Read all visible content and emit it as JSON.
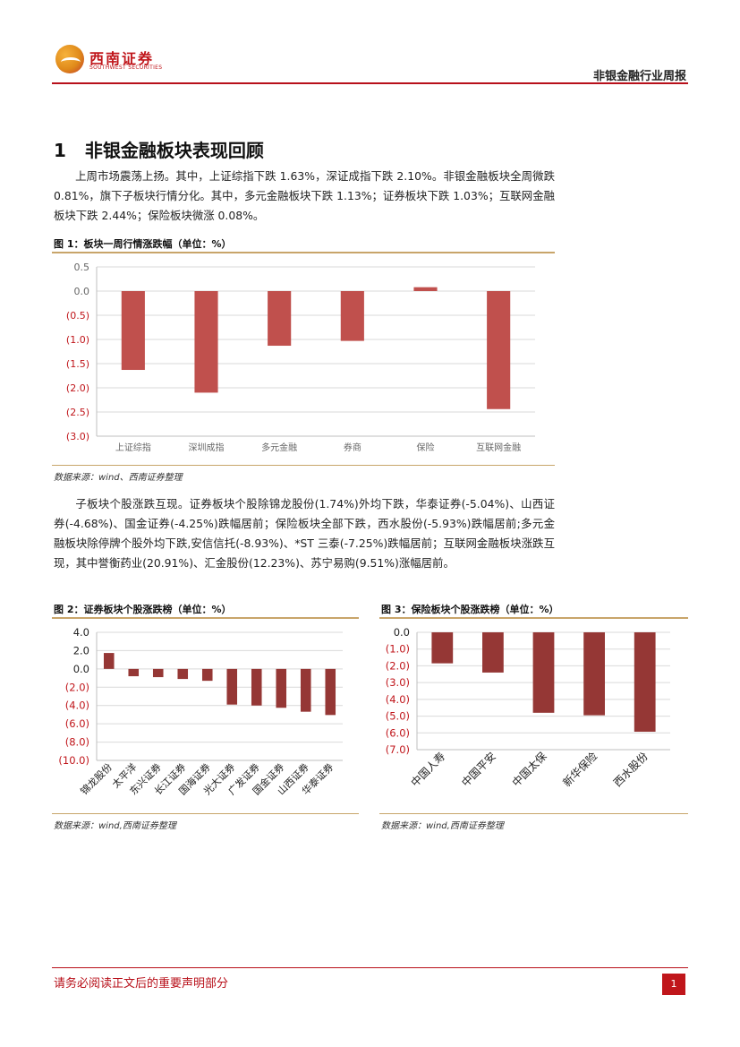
{
  "header": {
    "logo_cn": "西南证券",
    "logo_en": "SOUTHWEST SECURITIES",
    "report_type": "非银金融行业周报"
  },
  "section": {
    "number": "1",
    "title": "非银金融板块表现回顾"
  },
  "paragraphs": {
    "p1": "上周市场震荡上扬。其中，上证综指下跌 1.63%，深证成指下跌 2.10%。非银金融板块全周微跌 0.81%，旗下子板块行情分化。其中，多元金融板块下跌 1.13%；证券板块下跌 1.03%；互联网金融板块下跌 2.44%；保险板块微涨 0.08%。",
    "p2": "子板块个股涨跌互现。证券板块个股除锦龙股份(1.74%)外均下跌，华泰证券(-5.04%)、山西证券(-4.68%)、国金证券(-4.25%)跌幅居前；保险板块全部下跌，西水股份(-5.93%)跌幅居前;多元金融板块除停牌个股外均下跌,安信信托(-8.93%)、*ST 三泰(-7.25%)跌幅居前；互联网金融板块涨跌互现，其中誉衡药业(20.91%)、汇金股份(12.23%)、苏宁易购(9.51%)涨幅居前。"
  },
  "figures": {
    "fig1": {
      "title": "图 1：板块一周行情涨跌幅（单位：%）",
      "source": "数据来源：wind、西南证券整理"
    },
    "fig2": {
      "title": "图 2：证券板块个股涨跌榜（单位：%）",
      "source": "数据来源：wind,西南证券整理"
    },
    "fig3": {
      "title": "图 3：保险板块个股涨跌榜（单位：%）",
      "source": "数据来源：wind,西南证券整理"
    }
  },
  "chart_data": [
    {
      "id": "fig1",
      "type": "bar",
      "categories": [
        "上证综指",
        "深圳成指",
        "多元金融",
        "券商",
        "保险",
        "互联网金融"
      ],
      "values": [
        -1.63,
        -2.1,
        -1.13,
        -1.03,
        0.08,
        -2.44
      ],
      "ylim": [
        -3.0,
        0.5
      ],
      "yticks": [
        0.5,
        0.0,
        -0.5,
        -1.0,
        -1.5,
        -2.0,
        -2.5,
        -3.0
      ],
      "ytick_labels": [
        "0.5",
        "0.0",
        "(0.5)",
        "(1.0)",
        "(1.5)",
        "(2.0)",
        "(2.5)",
        "(3.0)"
      ],
      "grid": true,
      "bar_color": "#c0504d"
    },
    {
      "id": "fig2",
      "type": "bar",
      "categories": [
        "锦龙股份",
        "太平洋",
        "东兴证券",
        "长江证券",
        "国海证券",
        "光大证券",
        "广发证券",
        "国金证券",
        "山西证券",
        "华泰证券"
      ],
      "values": [
        1.74,
        -0.8,
        -0.9,
        -1.1,
        -1.3,
        -3.9,
        -4.0,
        -4.25,
        -4.68,
        -5.04
      ],
      "ylim": [
        -10.0,
        4.0
      ],
      "yticks": [
        4.0,
        2.0,
        0.0,
        -2.0,
        -4.0,
        -6.0,
        -8.0,
        -10.0
      ],
      "ytick_labels": [
        "4.0",
        "2.0",
        "0.0",
        "(2.0)",
        "(4.0)",
        "(6.0)",
        "(8.0)",
        "(10.0)"
      ],
      "grid": true,
      "bar_color": "#953735"
    },
    {
      "id": "fig3",
      "type": "bar",
      "categories": [
        "中国人寿",
        "中国平安",
        "中国太保",
        "新华保险",
        "西水股份"
      ],
      "values": [
        -1.85,
        -2.4,
        -4.8,
        -4.95,
        -5.93
      ],
      "ylim": [
        -7.0,
        0.0
      ],
      "yticks": [
        0.0,
        -1.0,
        -2.0,
        -3.0,
        -4.0,
        -5.0,
        -6.0,
        -7.0
      ],
      "ytick_labels": [
        "0.0",
        "(1.0)",
        "(2.0)",
        "(3.0)",
        "(4.0)",
        "(5.0)",
        "(6.0)",
        "(7.0)"
      ],
      "grid": true,
      "bar_color": "#953735"
    }
  ],
  "footer": {
    "disclaimer": "请务必阅读正文后的重要声明部分",
    "page": "1"
  }
}
